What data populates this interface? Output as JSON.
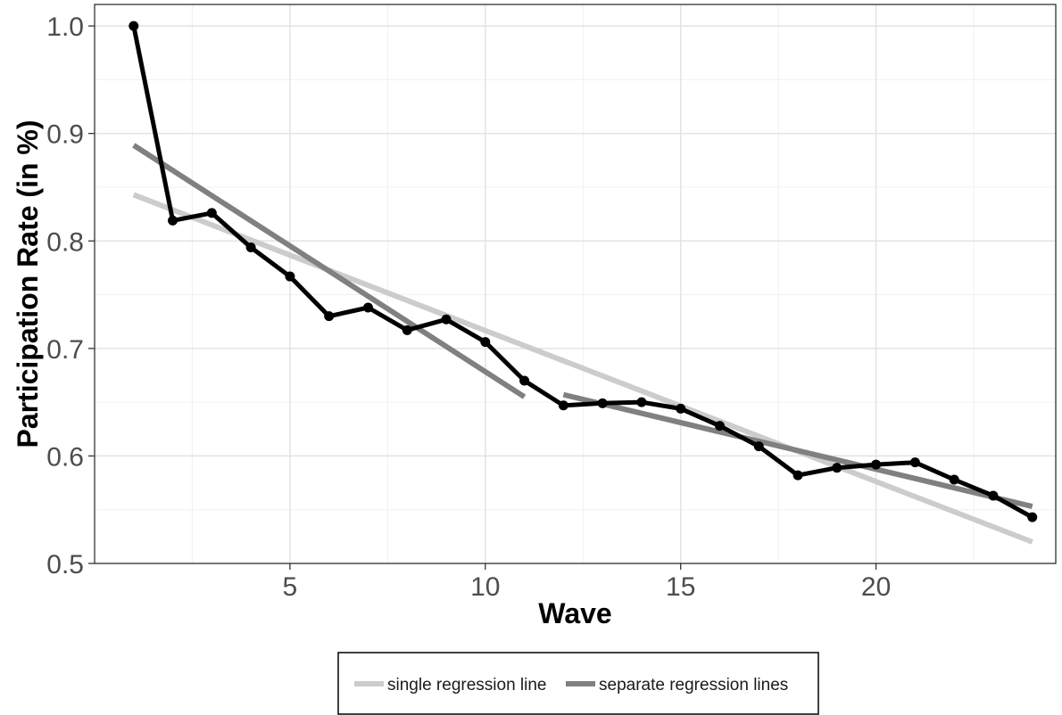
{
  "chart_data": {
    "type": "line",
    "xlabel": "Wave",
    "ylabel": "Participation Rate (in %)",
    "xlim": [
      0,
      24.6
    ],
    "ylim": [
      0.5,
      1.02
    ],
    "x_ticks": [
      5,
      10,
      15,
      20
    ],
    "y_ticks": [
      0.5,
      0.6,
      0.7,
      0.8,
      0.9,
      1.0
    ],
    "x_tick_labels": [
      "5",
      "10",
      "15",
      "20"
    ],
    "y_tick_labels": [
      "0.5",
      "0.6",
      "0.7",
      "0.8",
      "0.9",
      "1.0"
    ],
    "grid": true,
    "legend_position": "bottom",
    "series": [
      {
        "kind": "observed",
        "color": "#000000",
        "x": [
          1,
          2,
          3,
          4,
          5,
          6,
          7,
          8,
          9,
          10,
          11,
          12,
          13,
          14,
          15,
          16,
          17,
          18,
          19,
          20,
          21,
          22,
          23,
          24
        ],
        "y": [
          1.0,
          0.819,
          0.826,
          0.794,
          0.767,
          0.73,
          0.738,
          0.717,
          0.727,
          0.706,
          0.67,
          0.647,
          0.649,
          0.65,
          0.644,
          0.628,
          0.609,
          0.582,
          0.589,
          0.592,
          0.594,
          0.578,
          0.563,
          0.543
        ]
      },
      {
        "name": "single regression line",
        "color": "#cccccc",
        "segments": [
          {
            "x": [
              1,
              24
            ],
            "y": [
              0.843,
              0.52
            ]
          }
        ]
      },
      {
        "name": "separate regression lines",
        "color": "#808080",
        "segments": [
          {
            "x": [
              1,
              11
            ],
            "y": [
              0.889,
              0.655
            ]
          },
          {
            "x": [
              12,
              24
            ],
            "y": [
              0.657,
              0.553
            ]
          }
        ]
      }
    ]
  }
}
